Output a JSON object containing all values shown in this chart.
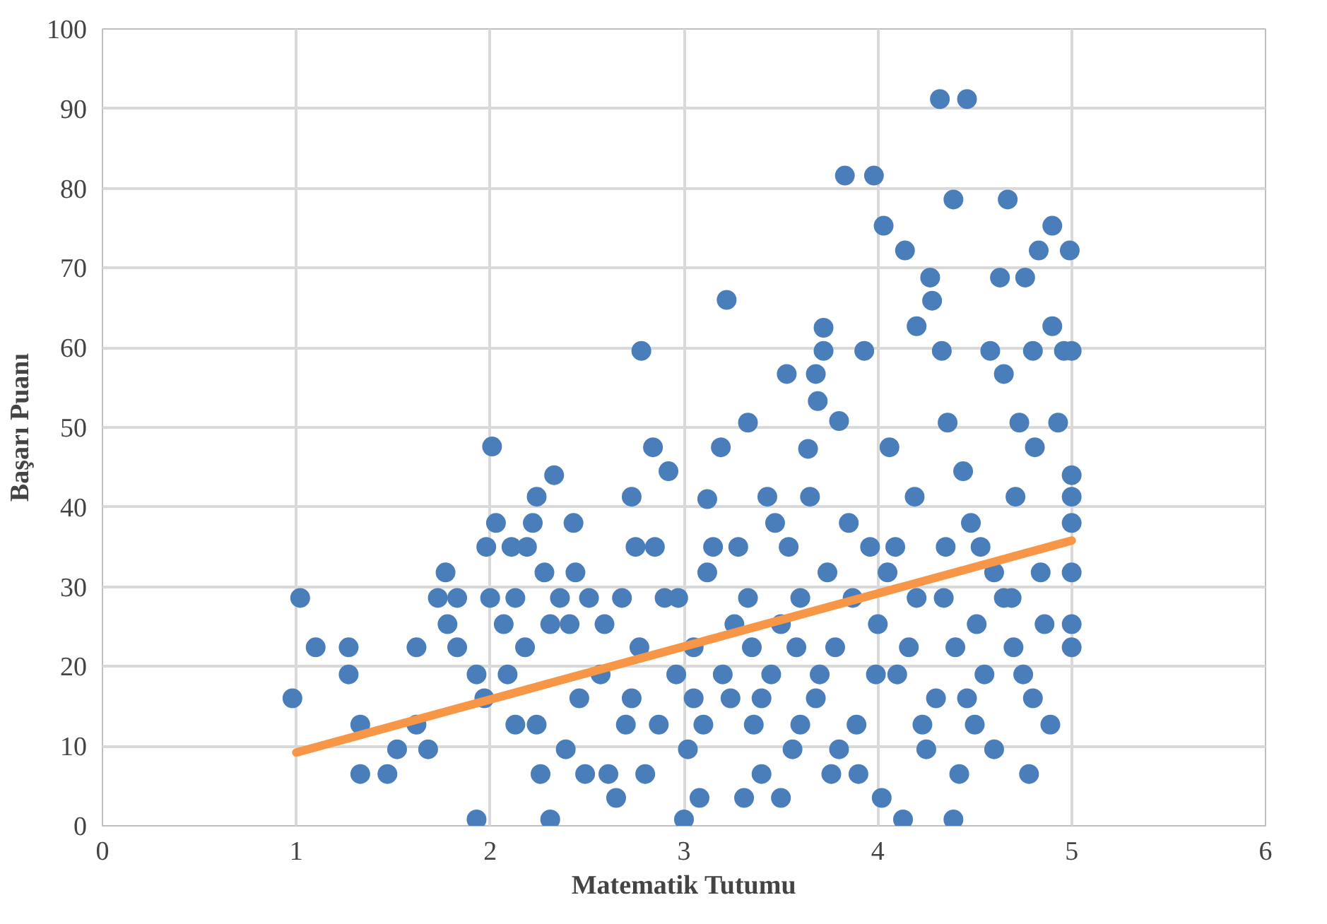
{
  "chart_data": {
    "type": "scatter",
    "xlabel": "Matematik Tutumu",
    "ylabel": "Başarı Puanı",
    "xlim": [
      0,
      6
    ],
    "ylim": [
      0,
      100
    ],
    "xticks": [
      0,
      1,
      2,
      3,
      4,
      5,
      6
    ],
    "yticks": [
      0,
      10,
      20,
      30,
      40,
      50,
      60,
      70,
      80,
      90,
      100
    ],
    "grid": true,
    "series": [
      {
        "marker": "circle",
        "color": "#4a7ebb",
        "x": [
          0.98,
          1.02,
          1.1,
          1.27,
          1.27,
          1.33,
          1.33,
          1.47,
          1.52,
          1.62,
          1.62,
          1.68,
          1.73,
          1.77,
          1.78,
          1.83,
          1.83,
          1.93,
          1.93,
          1.97,
          1.98,
          2.0,
          2.01,
          2.03,
          2.07,
          2.09,
          2.11,
          2.13,
          2.13,
          2.18,
          2.19,
          2.22,
          2.24,
          2.24,
          2.26,
          2.28,
          2.31,
          2.31,
          2.33,
          2.36,
          2.39,
          2.41,
          2.43,
          2.44,
          2.46,
          2.49,
          2.51,
          2.57,
          2.59,
          2.61,
          2.65,
          2.68,
          2.7,
          2.73,
          2.73,
          2.75,
          2.77,
          2.78,
          2.8,
          2.84,
          2.85,
          2.87,
          2.9,
          2.92,
          2.96,
          2.97,
          3.0,
          3.02,
          3.05,
          3.08,
          3.12,
          3.12,
          3.15,
          3.19,
          3.22,
          3.24,
          3.26,
          3.28,
          3.31,
          3.33,
          3.33,
          3.36,
          3.4,
          3.43,
          3.45,
          3.47,
          3.5,
          3.53,
          3.54,
          3.56,
          3.58,
          3.6,
          3.64,
          3.65,
          3.68,
          3.68,
          3.69,
          3.72,
          3.72,
          3.74,
          3.76,
          3.78,
          3.8,
          3.83,
          3.85,
          3.87,
          3.89,
          3.93,
          3.96,
          3.98,
          3.99,
          4.02,
          4.03,
          4.06,
          4.09,
          4.13,
          4.14,
          4.16,
          4.19,
          4.2,
          4.23,
          4.27,
          4.28,
          4.32,
          4.33,
          4.34,
          4.36,
          4.39,
          4.39,
          4.42,
          4.44,
          4.46,
          4.46,
          4.48,
          4.51,
          4.53,
          4.58,
          4.6,
          4.63,
          4.65,
          4.67,
          4.69,
          4.71,
          4.73,
          4.75,
          4.76,
          4.78,
          4.8,
          4.81,
          4.83,
          4.84,
          4.86,
          4.89,
          4.9,
          4.9,
          4.93,
          4.96,
          4.99,
          5.0,
          5.0,
          5.0,
          5.0,
          5.0,
          5.0,
          5.0,
          3.2,
          3.4,
          3.6,
          3.8,
          4.0,
          4.1,
          4.2,
          4.3,
          4.4,
          4.5,
          4.6,
          4.7,
          4.8,
          3.1,
          3.5,
          3.9,
          4.25,
          4.55,
          3.05,
          3.7,
          4.05,
          4.35,
          4.65,
          3.35
        ],
        "values": [
          16,
          28.6,
          22.4,
          22.4,
          19,
          12.7,
          6.5,
          6.5,
          9.6,
          12.7,
          22.4,
          9.6,
          28.6,
          31.8,
          25.3,
          28.6,
          22.4,
          0.8,
          19,
          16,
          35,
          28.6,
          47.6,
          38,
          25.3,
          19,
          35,
          28.6,
          12.7,
          22.4,
          35,
          38,
          41.3,
          12.7,
          6.5,
          31.8,
          25.3,
          0.8,
          44,
          28.6,
          9.6,
          25.3,
          38,
          31.8,
          16,
          6.5,
          28.6,
          19,
          25.3,
          6.5,
          3.5,
          28.6,
          12.7,
          16,
          41.3,
          35,
          22.4,
          59.6,
          6.5,
          47.5,
          35,
          12.7,
          28.6,
          44.5,
          19,
          28.6,
          0.8,
          9.6,
          22.4,
          3.5,
          31.8,
          41,
          35,
          47.5,
          66,
          16,
          25.3,
          35,
          3.5,
          28.6,
          50.6,
          12.7,
          6.5,
          41.3,
          19,
          38,
          25.3,
          56.7,
          35,
          9.6,
          22.4,
          28.6,
          47.3,
          41.3,
          56.7,
          16,
          53.3,
          59.6,
          62.5,
          31.8,
          6.5,
          22.4,
          50.8,
          81.6,
          38,
          28.6,
          12.7,
          59.6,
          35,
          81.6,
          19,
          3.5,
          75.3,
          47.5,
          35,
          0.8,
          72.2,
          22.4,
          41.3,
          62.7,
          12.7,
          68.8,
          65.9,
          91.2,
          59.6,
          28.6,
          50.6,
          78.6,
          0.8,
          6.5,
          44.5,
          91.2,
          16,
          38,
          25.3,
          35,
          59.6,
          9.6,
          68.8,
          56.7,
          78.6,
          28.6,
          41.3,
          50.6,
          19,
          68.8,
          6.5,
          59.6,
          47.5,
          72.2,
          31.8,
          25.3,
          12.7,
          75.3,
          62.7,
          50.6,
          59.6,
          72.2,
          44,
          41.3,
          38,
          31.8,
          25.3,
          22.4,
          59.6,
          19,
          16,
          12.7,
          9.6,
          25.3,
          19,
          28.6,
          16,
          22.4,
          12.7,
          31.8,
          22.4,
          16,
          12.7,
          3.5,
          6.5,
          9.6,
          19,
          16,
          19,
          31.8,
          35,
          28.6,
          22.4
        ]
      },
      {
        "type": "line",
        "color": "#f79646",
        "x": [
          1,
          5
        ],
        "values": [
          9.2,
          35.8
        ]
      }
    ]
  }
}
